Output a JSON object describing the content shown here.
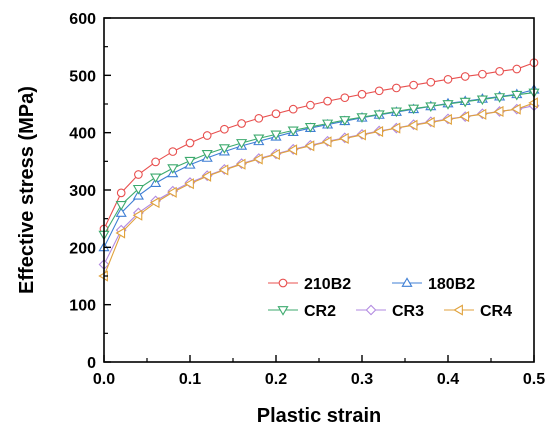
{
  "chart_data": {
    "type": "line",
    "xlabel": "Plastic strain",
    "ylabel": "Effective stress (MPa)",
    "xlim": [
      0.0,
      0.5
    ],
    "ylim": [
      0,
      600
    ],
    "x_ticks": [
      0.0,
      0.1,
      0.2,
      0.3,
      0.4,
      0.5
    ],
    "x_tick_labels": [
      "0.0",
      "0.1",
      "0.2",
      "0.3",
      "0.4",
      "0.5"
    ],
    "y_ticks": [
      0,
      100,
      200,
      300,
      400,
      500,
      600
    ],
    "y_tick_labels": [
      "0",
      "100",
      "200",
      "300",
      "400",
      "500",
      "600"
    ],
    "grid": false,
    "legend_position": "bottom-right",
    "x": [
      0.0,
      0.02,
      0.04,
      0.06,
      0.08,
      0.1,
      0.12,
      0.14,
      0.16,
      0.18,
      0.2,
      0.22,
      0.24,
      0.26,
      0.28,
      0.3,
      0.32,
      0.34,
      0.36,
      0.38,
      0.4,
      0.42,
      0.44,
      0.46,
      0.48,
      0.5
    ],
    "series": [
      {
        "name": "210B2",
        "color": "#e8504f",
        "marker": "circle",
        "values": [
          232,
          295,
          327,
          349,
          367,
          382,
          395,
          406,
          416,
          425,
          433,
          441,
          448,
          455,
          461,
          467,
          473,
          478,
          483,
          488,
          493,
          498,
          502,
          507,
          511,
          522
        ]
      },
      {
        "name": "180B2",
        "color": "#3f7fd4",
        "marker": "triangle-up",
        "values": [
          200,
          260,
          290,
          312,
          329,
          344,
          356,
          367,
          377,
          385,
          393,
          401,
          408,
          414,
          420,
          426,
          431,
          436,
          441,
          446,
          451,
          455,
          459,
          463,
          467,
          475
        ]
      },
      {
        "name": "CR2",
        "color": "#3daa6e",
        "marker": "triangle-down",
        "values": [
          222,
          274,
          302,
          322,
          338,
          351,
          363,
          373,
          382,
          390,
          397,
          404,
          410,
          416,
          422,
          427,
          432,
          437,
          442,
          446,
          450,
          454,
          458,
          462,
          466,
          470
        ]
      },
      {
        "name": "CR3",
        "color": "#b28ae0",
        "marker": "diamond",
        "values": [
          170,
          230,
          260,
          281,
          298,
          313,
          325,
          336,
          346,
          355,
          363,
          371,
          378,
          385,
          391,
          397,
          403,
          408,
          414,
          419,
          424,
          428,
          433,
          437,
          441,
          447
        ]
      },
      {
        "name": "CR4",
        "color": "#e0a23c",
        "marker": "triangle-left",
        "values": [
          150,
          225,
          256,
          278,
          296,
          311,
          324,
          335,
          345,
          354,
          362,
          370,
          377,
          384,
          390,
          396,
          402,
          408,
          413,
          418,
          423,
          428,
          432,
          437,
          441,
          452
        ]
      }
    ]
  }
}
